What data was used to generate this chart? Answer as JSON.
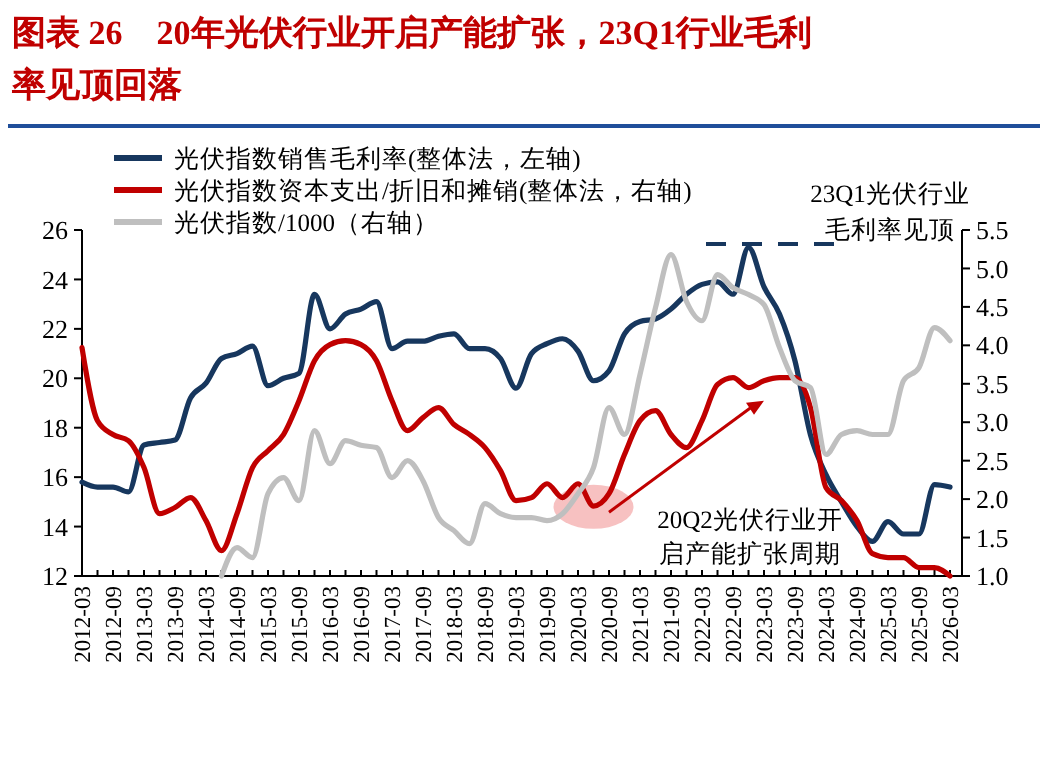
{
  "chart_data": {
    "type": "line",
    "title": "图表 26　20年光伏行业开启产能扩张，23Q1行业毛利率见顶回落",
    "categories": [
      "2012-03",
      null,
      "2012-09",
      null,
      "2013-03",
      null,
      "2013-09",
      null,
      "2014-03",
      null,
      "2014-09",
      null,
      "2015-03",
      null,
      "2015-09",
      null,
      "2016-03",
      null,
      "2016-09",
      null,
      "2017-03",
      null,
      "2017-09",
      null,
      "2018-03",
      null,
      "2018-09",
      null,
      "2019-03",
      null,
      "2019-09",
      null,
      "2020-03",
      null,
      "2020-09",
      null,
      "2021-03",
      null,
      "2021-09",
      null,
      "2022-03",
      null,
      "2022-09",
      null,
      "2023-03",
      null,
      "2023-09",
      null,
      "2024-03",
      null,
      "2024-09",
      null,
      "2025-03",
      null,
      "2025-09",
      null,
      "2026-03"
    ],
    "series": [
      {
        "name": "光伏指数销售毛利率(整体法，左轴)",
        "color": "#17375e",
        "values": [
          15.8,
          15.6,
          15.6,
          15.4,
          17.3,
          17.4,
          17.5,
          19.2,
          19.8,
          20.8,
          21.0,
          21.3,
          19.7,
          20.0,
          20.2,
          23.4,
          22.0,
          22.6,
          22.8,
          23.1,
          21.2,
          21.5,
          21.5,
          21.7,
          21.8,
          21.2,
          21.2,
          20.8,
          19.6,
          21.0,
          21.4,
          21.6,
          21.1,
          19.9,
          20.3,
          21.8,
          22.3,
          22.4,
          22.8,
          23.4,
          23.8,
          23.9,
          23.4,
          25.3,
          23.7,
          22.6,
          20.7,
          17.7,
          16.1,
          15.0,
          14.0,
          13.4,
          14.2,
          13.7,
          13.7,
          15.7,
          15.6
        ]
      },
      {
        "name": "光伏指数资本支出/折旧和摊销(整体法，右轴)",
        "color": "#c00000",
        "axis": "y2",
        "values": [
          3.97,
          3.02,
          2.84,
          2.76,
          2.41,
          1.81,
          1.89,
          2.02,
          1.72,
          1.33,
          1.81,
          2.41,
          2.63,
          2.84,
          3.28,
          3.8,
          4.01,
          4.06,
          4.01,
          3.8,
          3.28,
          2.89,
          3.06,
          3.19,
          2.97,
          2.84,
          2.67,
          2.37,
          1.98,
          2.02,
          2.2,
          2.02,
          2.2,
          1.91,
          2.07,
          2.58,
          3.02,
          3.15,
          2.84,
          2.67,
          3.02,
          3.49,
          3.58,
          3.45,
          3.54,
          3.58,
          3.58,
          3.19,
          2.15,
          1.98,
          1.72,
          1.29,
          1.24,
          1.24,
          1.11,
          1.11,
          1.0
        ]
      },
      {
        "name": "光伏指数/1000（右轴）",
        "color": "#bfbfbf",
        "axis": "y2",
        "values": [
          null,
          null,
          null,
          null,
          null,
          null,
          null,
          null,
          null,
          1.0,
          1.37,
          1.24,
          2.07,
          2.28,
          1.98,
          2.89,
          2.46,
          2.76,
          2.7,
          2.67,
          2.28,
          2.5,
          2.24,
          1.76,
          1.59,
          1.42,
          1.94,
          1.81,
          1.76,
          1.76,
          1.72,
          1.81,
          2.07,
          2.41,
          3.19,
          2.84,
          3.62,
          4.49,
          5.18,
          4.57,
          4.32,
          4.92,
          4.75,
          4.66,
          4.53,
          3.97,
          3.54,
          3.45,
          2.58,
          2.84,
          2.89,
          2.84,
          2.84,
          3.54,
          3.71,
          4.23,
          4.06
        ]
      }
    ],
    "ylim": [
      12,
      26
    ],
    "yticks": [
      12,
      14,
      16,
      18,
      20,
      22,
      24,
      26
    ],
    "y2lim": [
      1,
      5.5
    ],
    "y2ticks": [
      {
        "value": 1,
        "label": "1.0"
      },
      {
        "value": 1.5,
        "label": "1.5"
      },
      {
        "value": 2,
        "label": "2.0"
      },
      {
        "value": 2.5,
        "label": "2.5"
      },
      {
        "value": 3,
        "label": "3.0"
      },
      {
        "value": 3.5,
        "label": "3.5"
      },
      {
        "value": 4,
        "label": "4.0"
      },
      {
        "value": 4.5,
        "label": "4.5"
      },
      {
        "value": 5,
        "label": "5.0"
      },
      {
        "value": 5.5,
        "label": "5.5"
      }
    ],
    "grid": false,
    "legend": "top left",
    "line_style": "solid",
    "marker": "none",
    "annotations": [
      "23Q1光伏行业毛利率见顶",
      "20Q2光伏行业开启产能扩张周期"
    ]
  }
}
